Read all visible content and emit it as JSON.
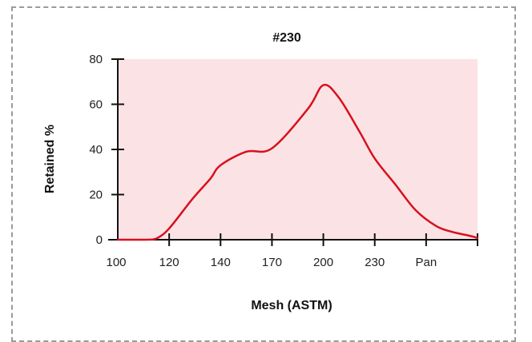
{
  "chart_data": {
    "type": "area",
    "title": "#230",
    "xlabel": "Mesh (ASTM)",
    "ylabel": "Retained %",
    "categories": [
      "100",
      "120",
      "140",
      "170",
      "200",
      "230",
      "Pan"
    ],
    "ylim": [
      0,
      80
    ],
    "yticks": [
      0,
      20,
      40,
      60,
      80
    ],
    "series": [
      {
        "x": [
          0,
          0.55,
          0.75,
          1.0,
          1.45,
          1.8,
          2.0,
          2.5,
          3.0,
          3.7,
          4.0,
          4.3,
          4.7,
          5.0,
          5.4,
          5.8,
          6.2,
          6.5,
          6.8,
          7.0
        ],
        "y": [
          0,
          0,
          0.5,
          5,
          18,
          27,
          33,
          39,
          40.5,
          58,
          68.5,
          63,
          48,
          36,
          24.5,
          13,
          6,
          3.5,
          2,
          0.8
        ]
      }
    ],
    "colors": {
      "line": "#d8101e",
      "fill": "#fbe3e5",
      "axis": "#111111"
    }
  }
}
